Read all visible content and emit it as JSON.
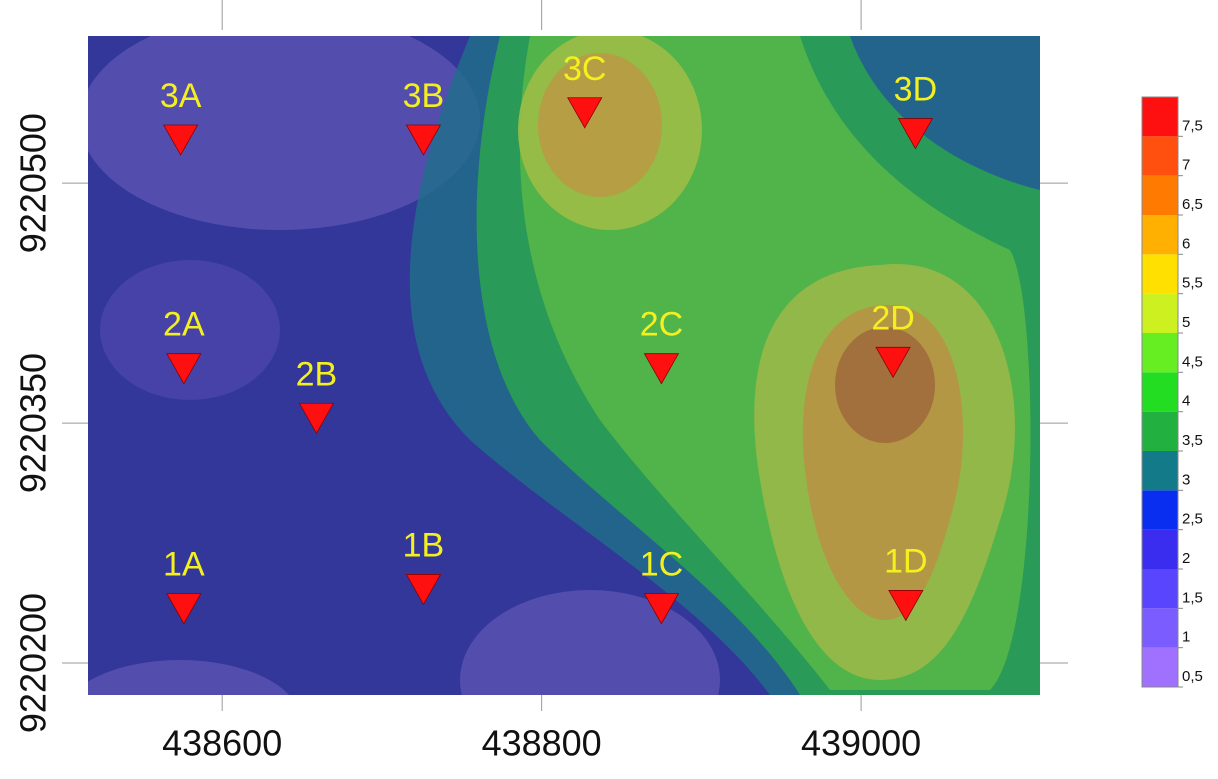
{
  "map": {
    "xlim": [
      438516,
      439112
    ],
    "ylim": [
      9220180,
      9220592
    ],
    "xticks": [
      438600,
      438800,
      439000
    ],
    "yticks": [
      9220500,
      9220350,
      9220200
    ],
    "stations": [
      {
        "label": "3A",
        "x": 438574,
        "y": 9220527
      },
      {
        "label": "3B",
        "x": 438726,
        "y": 9220527
      },
      {
        "label": "3C",
        "x": 438827,
        "y": 9220544
      },
      {
        "label": "3D",
        "x": 439034,
        "y": 9220531
      },
      {
        "label": "2A",
        "x": 438576,
        "y": 9220384
      },
      {
        "label": "2B",
        "x": 438659,
        "y": 9220353
      },
      {
        "label": "2C",
        "x": 438875,
        "y": 9220384
      },
      {
        "label": "2D",
        "x": 439020,
        "y": 9220388
      },
      {
        "label": "1A",
        "x": 438576,
        "y": 9220234
      },
      {
        "label": "1B",
        "x": 438726,
        "y": 9220246
      },
      {
        "label": "1C",
        "x": 438875,
        "y": 9220234
      },
      {
        "label": "1D",
        "x": 439028,
        "y": 9220236
      }
    ],
    "colorbar": {
      "range": [
        0.5,
        8
      ],
      "ticks": [
        {
          "value": 0.5,
          "label": "0,5"
        },
        {
          "value": 1,
          "label": "1"
        },
        {
          "value": 1.5,
          "label": "1,5"
        },
        {
          "value": 2,
          "label": "2"
        },
        {
          "value": 2.5,
          "label": "2,5"
        },
        {
          "value": 3,
          "label": "3"
        },
        {
          "value": 3.5,
          "label": "3,5"
        },
        {
          "value": 4,
          "label": "4"
        },
        {
          "value": 4.5,
          "label": "4,5"
        },
        {
          "value": 5,
          "label": "5"
        },
        {
          "value": 5.5,
          "label": "5,5"
        },
        {
          "value": 6,
          "label": "6"
        },
        {
          "value": 6.5,
          "label": "6,5"
        },
        {
          "value": 7,
          "label": "7"
        },
        {
          "value": 7.5,
          "label": "7,5"
        }
      ],
      "colors": [
        "#a070ff",
        "#7a5cff",
        "#5a45ff",
        "#3a2df0",
        "#0a2ef0",
        "#137a8a",
        "#22b040",
        "#22dd22",
        "#66ee22",
        "#ccf020",
        "#ffe000",
        "#ffb000",
        "#ff7a00",
        "#ff5010",
        "#ff1010"
      ]
    }
  }
}
